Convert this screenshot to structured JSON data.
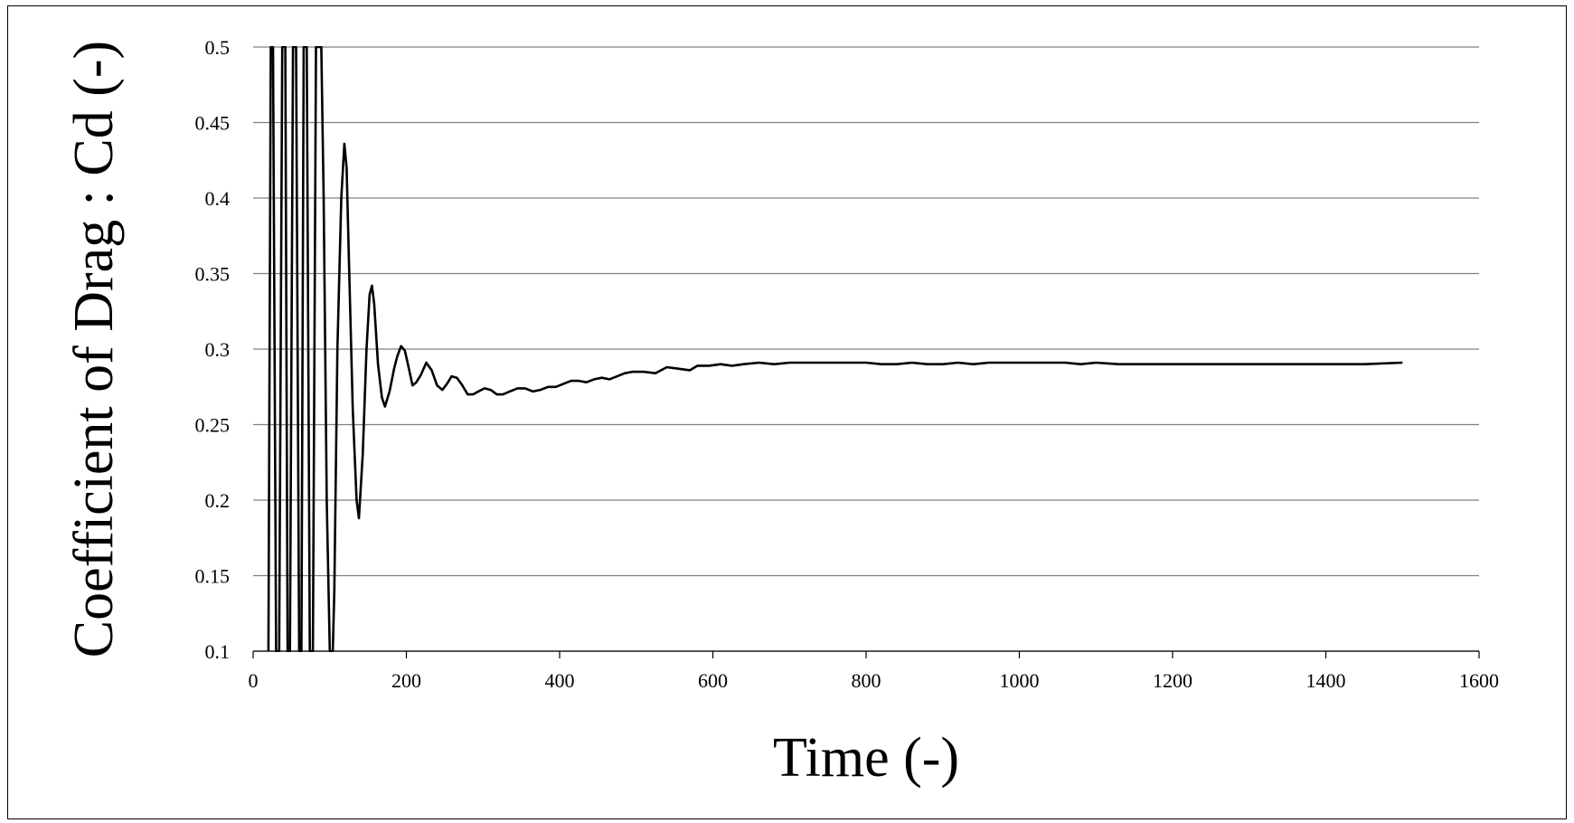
{
  "chart_data": {
    "type": "line",
    "title": "",
    "xlabel": "Time (-)",
    "ylabel": "Coefficient of Drag : Cd (-)",
    "xlim": [
      0,
      1600
    ],
    "ylim": [
      0.1,
      0.5
    ],
    "x_ticks": [
      0,
      200,
      400,
      600,
      800,
      1000,
      1200,
      1400,
      1600
    ],
    "y_ticks": [
      0.1,
      0.15,
      0.2,
      0.25,
      0.3,
      0.35,
      0.4,
      0.45,
      0.5
    ],
    "x_tick_labels": [
      "0",
      "200",
      "400",
      "600",
      "800",
      "1000",
      "1200",
      "1400",
      "1600"
    ],
    "y_tick_labels": [
      "0.1",
      "0.15",
      "0.2",
      "0.25",
      "0.3",
      "0.35",
      "0.4",
      "0.45",
      "0.5"
    ],
    "grid": "horizontal",
    "legend": "none",
    "line_color": "#000000",
    "grid_color": "#808080",
    "series": [
      {
        "x": [
          20,
          23,
          26,
          30,
          34,
          38,
          42,
          45,
          48,
          52,
          56,
          60,
          63,
          66,
          70,
          74,
          78,
          82,
          86,
          89,
          92,
          96,
          100,
          104,
          106,
          110,
          115,
          119,
          122,
          125,
          130,
          135,
          138,
          143,
          148,
          152,
          155,
          158,
          163,
          168,
          172,
          178,
          184,
          188,
          193,
          198,
          202,
          208,
          213,
          219,
          226,
          233,
          240,
          247,
          253,
          259,
          266,
          273,
          280,
          287,
          294,
          302,
          310,
          318,
          326,
          335,
          345,
          355,
          365,
          375,
          385,
          395,
          405,
          415,
          425,
          435,
          445,
          455,
          465,
          475,
          485,
          495,
          510,
          525,
          540,
          555,
          570,
          580,
          595,
          610,
          625,
          640,
          660,
          680,
          700,
          720,
          740,
          760,
          780,
          800,
          820,
          840,
          860,
          880,
          900,
          920,
          940,
          960,
          980,
          1000,
          1030,
          1060,
          1080,
          1100,
          1130,
          1160,
          1200,
          1250,
          1300,
          1350,
          1400,
          1450,
          1500
        ],
        "y": [
          0.1,
          0.5,
          0.5,
          0.1,
          0.1,
          0.5,
          0.5,
          0.1,
          0.1,
          0.5,
          0.5,
          0.1,
          0.1,
          0.5,
          0.5,
          0.1,
          0.1,
          0.5,
          0.5,
          0.5,
          0.4,
          0.2,
          0.1,
          0.1,
          0.14,
          0.3,
          0.4,
          0.436,
          0.42,
          0.36,
          0.26,
          0.2,
          0.188,
          0.23,
          0.3,
          0.336,
          0.342,
          0.33,
          0.29,
          0.268,
          0.262,
          0.272,
          0.287,
          0.295,
          0.302,
          0.299,
          0.29,
          0.276,
          0.278,
          0.283,
          0.291,
          0.286,
          0.276,
          0.273,
          0.277,
          0.282,
          0.281,
          0.276,
          0.27,
          0.27,
          0.272,
          0.274,
          0.273,
          0.27,
          0.27,
          0.272,
          0.274,
          0.274,
          0.272,
          0.273,
          0.275,
          0.275,
          0.277,
          0.279,
          0.279,
          0.278,
          0.28,
          0.281,
          0.28,
          0.282,
          0.284,
          0.285,
          0.285,
          0.284,
          0.288,
          0.287,
          0.286,
          0.289,
          0.289,
          0.29,
          0.289,
          0.29,
          0.291,
          0.29,
          0.291,
          0.291,
          0.291,
          0.291,
          0.291,
          0.291,
          0.29,
          0.29,
          0.291,
          0.29,
          0.29,
          0.291,
          0.29,
          0.291,
          0.291,
          0.291,
          0.291,
          0.291,
          0.29,
          0.291,
          0.29,
          0.29,
          0.29,
          0.29,
          0.29,
          0.29,
          0.29,
          0.29,
          0.291
        ]
      }
    ]
  }
}
